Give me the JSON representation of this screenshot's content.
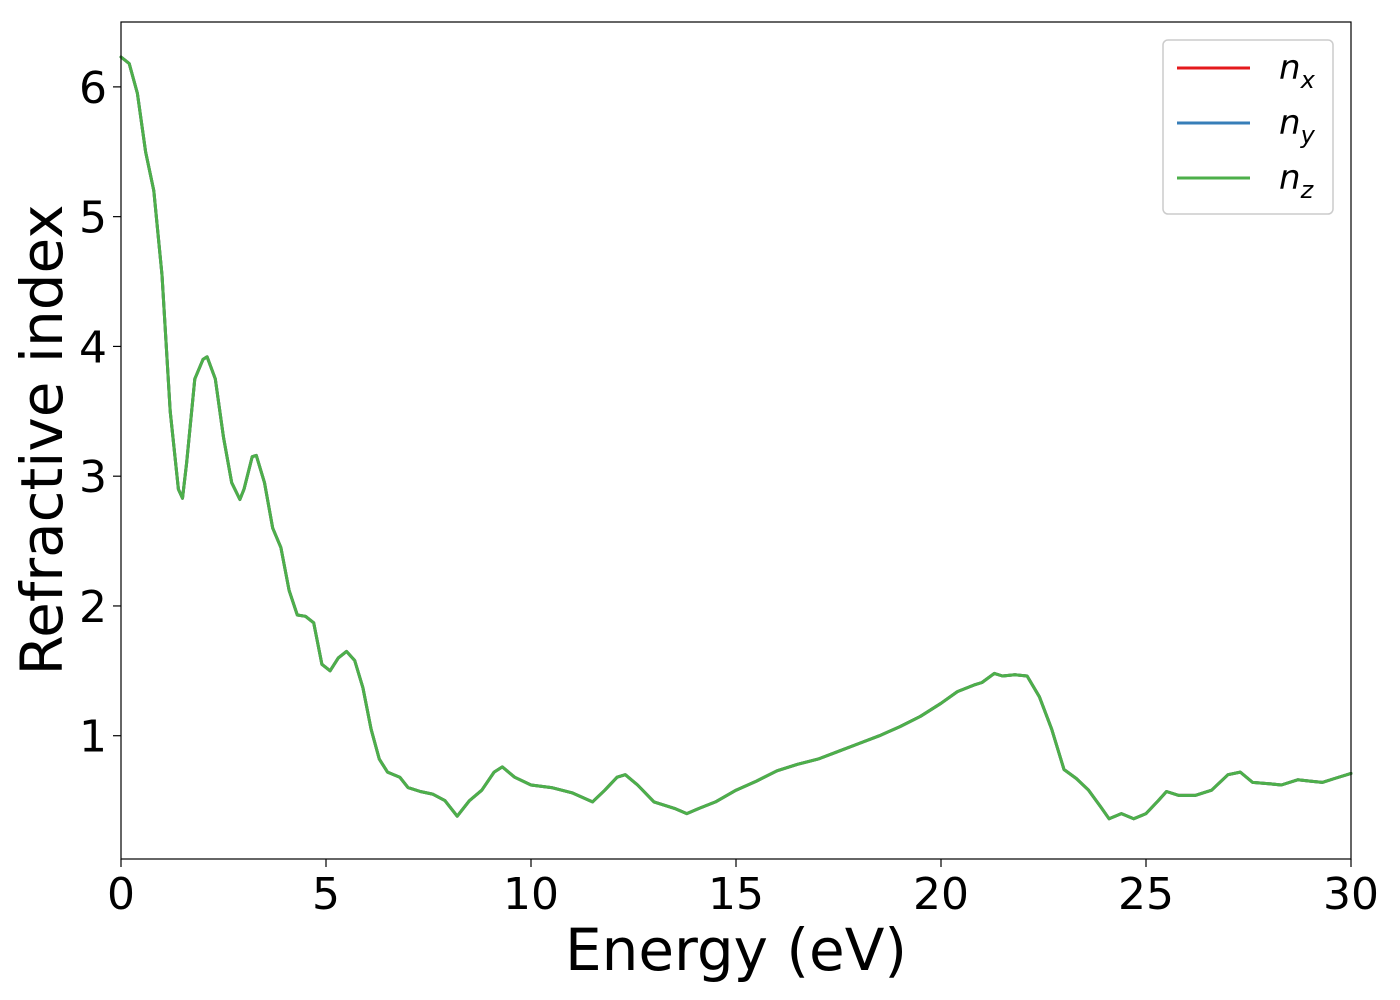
{
  "chart_data": {
    "type": "line",
    "title": "",
    "xlabel": "Energy (eV)",
    "ylabel": "Refractive index",
    "xlim": [
      0,
      30
    ],
    "ylim": [
      0.05,
      6.5
    ],
    "xticks": [
      0,
      5,
      10,
      15,
      20,
      25,
      30
    ],
    "yticks": [
      1,
      2,
      3,
      4,
      5,
      6
    ],
    "grid": false,
    "legend_position": "top-right",
    "series": [
      {
        "name": "n",
        "subscript": "x",
        "color": "#e41a1c",
        "points": "shared"
      },
      {
        "name": "n",
        "subscript": "y",
        "color": "#377eb8",
        "points": "shared"
      },
      {
        "name": "n",
        "subscript": "z",
        "color": "#4daf4a",
        "points": "shared"
      }
    ],
    "x": [
      0,
      0.2,
      0.4,
      0.6,
      0.8,
      1.0,
      1.2,
      1.4,
      1.5,
      1.6,
      1.8,
      2.0,
      2.1,
      2.3,
      2.5,
      2.7,
      2.9,
      3.0,
      3.2,
      3.3,
      3.5,
      3.7,
      3.9,
      4.1,
      4.3,
      4.5,
      4.7,
      4.9,
      5.1,
      5.3,
      5.5,
      5.7,
      5.9,
      6.1,
      6.3,
      6.5,
      6.8,
      7.0,
      7.3,
      7.6,
      7.9,
      8.2,
      8.5,
      8.8,
      9.1,
      9.3,
      9.6,
      10.0,
      10.5,
      11.0,
      11.5,
      11.8,
      12.1,
      12.3,
      12.6,
      13.0,
      13.5,
      13.8,
      14.1,
      14.5,
      15.0,
      15.5,
      16.0,
      16.5,
      17.0,
      17.5,
      18.0,
      18.5,
      19.0,
      19.5,
      20.0,
      20.4,
      20.8,
      21.0,
      21.3,
      21.5,
      21.8,
      22.1,
      22.4,
      22.7,
      23.0,
      23.3,
      23.6,
      23.9,
      24.1,
      24.4,
      24.7,
      25.0,
      25.3,
      25.5,
      25.8,
      26.2,
      26.6,
      27.0,
      27.3,
      27.6,
      28.0,
      28.3,
      28.7,
      29.0,
      29.3,
      29.6,
      30.0
    ],
    "y": [
      6.23,
      6.18,
      5.95,
      5.5,
      5.2,
      4.55,
      3.5,
      2.9,
      2.83,
      3.1,
      3.75,
      3.9,
      3.92,
      3.75,
      3.3,
      2.95,
      2.82,
      2.9,
      3.15,
      3.16,
      2.95,
      2.6,
      2.45,
      2.12,
      1.93,
      1.92,
      1.87,
      1.55,
      1.5,
      1.6,
      1.65,
      1.58,
      1.37,
      1.05,
      0.82,
      0.72,
      0.68,
      0.6,
      0.57,
      0.55,
      0.5,
      0.38,
      0.5,
      0.58,
      0.72,
      0.76,
      0.68,
      0.62,
      0.6,
      0.56,
      0.49,
      0.58,
      0.68,
      0.7,
      0.62,
      0.49,
      0.44,
      0.4,
      0.44,
      0.49,
      0.58,
      0.65,
      0.73,
      0.78,
      0.82,
      0.88,
      0.94,
      1.0,
      1.07,
      1.15,
      1.25,
      1.34,
      1.39,
      1.41,
      1.48,
      1.46,
      1.47,
      1.46,
      1.3,
      1.05,
      0.74,
      0.67,
      0.58,
      0.45,
      0.36,
      0.4,
      0.36,
      0.4,
      0.5,
      0.57,
      0.54,
      0.54,
      0.58,
      0.7,
      0.72,
      0.64,
      0.63,
      0.62,
      0.66,
      0.65,
      0.64,
      0.67,
      0.71
    ]
  }
}
